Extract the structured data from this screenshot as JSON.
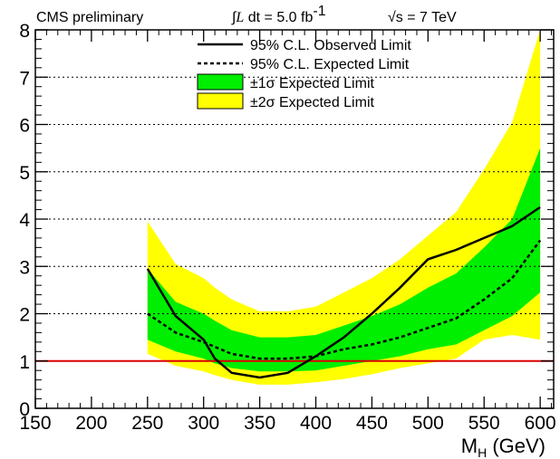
{
  "chart_data": {
    "type": "line",
    "header": {
      "left": "CMS preliminary",
      "lumi_integral": "∫",
      "lumi_L": "L",
      "lumi_text": " dt = 5.0 fb",
      "lumi_exp": "-1",
      "energy_sqrt": "√",
      "energy_text": "s = 7 TeV"
    },
    "xlabel": "M",
    "xlabel_sub": "H",
    "xlabel_unit": " (GeV)",
    "ylabel": "",
    "xlim": [
      150,
      612
    ],
    "ylim": [
      0,
      8
    ],
    "xticks": [
      150,
      200,
      250,
      300,
      350,
      400,
      450,
      500,
      550,
      600
    ],
    "yticks": [
      0,
      1,
      2,
      3,
      4,
      5,
      6,
      7,
      8
    ],
    "grid": "horizontal-dotted",
    "legend_position": "top-center",
    "reference_line": {
      "y": 1,
      "color": "#dd0000"
    },
    "colors": {
      "band_1sigma": "#00ee00",
      "band_2sigma": "#ffff00",
      "observed": "#000000",
      "expected": "#000000"
    },
    "x": [
      250,
      275,
      300,
      310,
      325,
      350,
      375,
      400,
      425,
      450,
      475,
      500,
      525,
      550,
      575,
      600
    ],
    "series": [
      {
        "name": "95% C.L. Observed Limit",
        "style": "solid",
        "values": [
          2.95,
          1.95,
          1.45,
          1.05,
          0.75,
          0.65,
          0.75,
          1.1,
          1.5,
          2.0,
          2.55,
          3.15,
          3.35,
          3.6,
          3.85,
          4.25
        ]
      },
      {
        "name": "95% C.L. Expected Limit",
        "style": "dashed",
        "values": [
          2.0,
          1.6,
          1.4,
          1.3,
          1.15,
          1.05,
          1.05,
          1.1,
          1.25,
          1.35,
          1.5,
          1.7,
          1.9,
          2.3,
          2.75,
          3.55
        ]
      },
      {
        "name": "±1σ Expected Limit",
        "style": "band",
        "fill": "#00ee00",
        "lower": [
          1.45,
          1.2,
          1.05,
          0.95,
          0.85,
          0.78,
          0.78,
          0.8,
          0.9,
          1.0,
          1.1,
          1.25,
          1.35,
          1.65,
          1.95,
          2.45
        ],
        "upper": [
          2.95,
          2.25,
          2.0,
          1.85,
          1.65,
          1.5,
          1.5,
          1.55,
          1.75,
          1.95,
          2.2,
          2.55,
          2.85,
          3.4,
          4.0,
          5.5
        ]
      },
      {
        "name": "±2σ Expected Limit",
        "style": "band",
        "fill": "#ffff00",
        "lower": [
          1.15,
          0.9,
          0.78,
          0.7,
          0.6,
          0.5,
          0.5,
          0.55,
          0.62,
          0.72,
          0.85,
          0.95,
          1.05,
          1.45,
          1.55,
          1.45
        ],
        "upper": [
          3.95,
          3.05,
          2.75,
          2.55,
          2.3,
          2.05,
          2.05,
          2.15,
          2.45,
          2.75,
          3.15,
          3.65,
          4.15,
          5.05,
          6.05,
          8.0
        ]
      }
    ]
  }
}
